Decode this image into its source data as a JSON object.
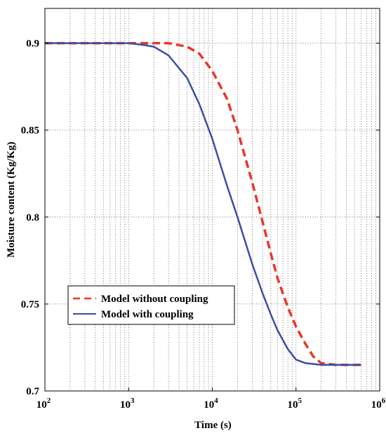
{
  "chart_data": {
    "type": "line",
    "title": "",
    "xlabel": "Time (s)",
    "ylabel": "Moisture content (Kg/Kg)",
    "x_scale": "log",
    "xlim": [
      100,
      1000000
    ],
    "ylim": [
      0.7,
      0.92
    ],
    "grid": true,
    "legend_position": "lower-left",
    "x_ticks": [
      {
        "value": 100,
        "base": "10",
        "exp": "2"
      },
      {
        "value": 1000,
        "base": "10",
        "exp": "3"
      },
      {
        "value": 10000,
        "base": "10",
        "exp": "4"
      },
      {
        "value": 100000,
        "base": "10",
        "exp": "5"
      },
      {
        "value": 1000000,
        "base": "10",
        "exp": "6"
      }
    ],
    "y_ticks": [
      {
        "value": 0.7,
        "label": "0.7"
      },
      {
        "value": 0.75,
        "label": "0.75"
      },
      {
        "value": 0.8,
        "label": "0.8"
      },
      {
        "value": 0.85,
        "label": "0.85"
      },
      {
        "value": 0.9,
        "label": "0.9"
      }
    ],
    "series": [
      {
        "name": "Model without coupling",
        "color": "#e8372a",
        "style": "dashed",
        "x": [
          100,
          200,
          500,
          1000,
          2000,
          3000,
          5000,
          7000,
          10000,
          15000,
          20000,
          30000,
          40000,
          50000,
          60000,
          80000,
          100000,
          130000,
          160000,
          200000,
          300000,
          600000
        ],
        "y": [
          0.9,
          0.9,
          0.9,
          0.9,
          0.9,
          0.9,
          0.898,
          0.894,
          0.884,
          0.868,
          0.85,
          0.82,
          0.797,
          0.779,
          0.765,
          0.748,
          0.737,
          0.727,
          0.72,
          0.716,
          0.715,
          0.715
        ]
      },
      {
        "name": "Model with coupling",
        "color": "#3a4fa3",
        "style": "solid",
        "x": [
          100,
          200,
          500,
          1000,
          1500,
          2000,
          3000,
          5000,
          7000,
          10000,
          15000,
          20000,
          30000,
          40000,
          50000,
          60000,
          80000,
          100000,
          130000,
          200000,
          300000,
          600000
        ],
        "y": [
          0.9,
          0.9,
          0.9,
          0.9,
          0.899,
          0.898,
          0.893,
          0.88,
          0.865,
          0.845,
          0.818,
          0.8,
          0.773,
          0.756,
          0.744,
          0.735,
          0.724,
          0.718,
          0.716,
          0.715,
          0.715,
          0.715
        ]
      }
    ]
  }
}
